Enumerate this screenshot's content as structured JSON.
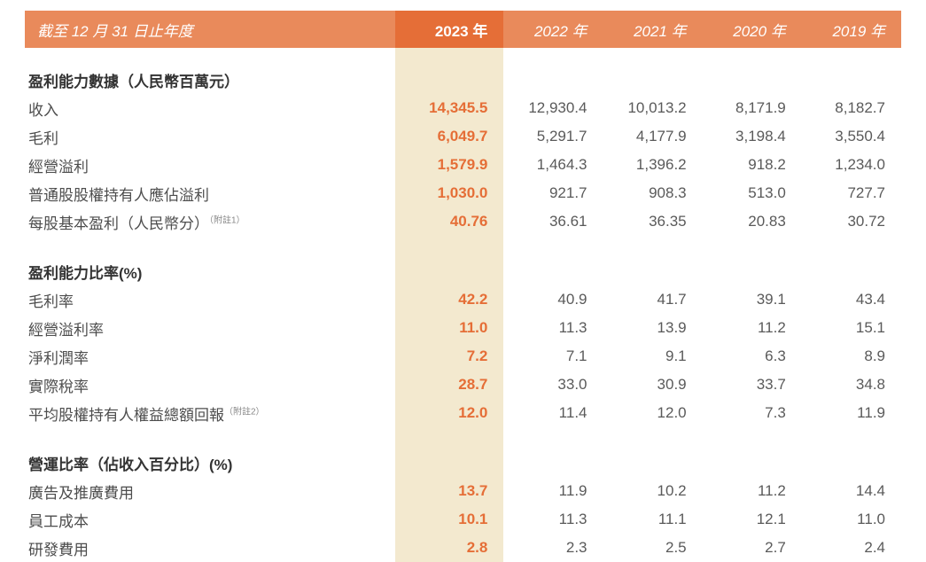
{
  "colors": {
    "header_bg": "#e98a5b",
    "header_hi_bg": "#e56e37",
    "hi_col_bg": "#f3e9cf",
    "hi_text": "#e56e37",
    "body_text": "#5a5a5a",
    "label_text": "#4d4d4d",
    "section_text": "#333333"
  },
  "header": {
    "title": "截至 12 月 31 日止年度",
    "years": [
      "2023 年",
      "2022 年",
      "2021 年",
      "2020 年",
      "2019 年"
    ]
  },
  "sections": [
    {
      "title": "盈利能力數據（人民幣百萬元）",
      "rows": [
        {
          "label": "收入",
          "v": [
            "14,345.5",
            "12,930.4",
            "10,013.2",
            "8,171.9",
            "8,182.7"
          ]
        },
        {
          "label": "毛利",
          "v": [
            "6,049.7",
            "5,291.7",
            "4,177.9",
            "3,198.4",
            "3,550.4"
          ]
        },
        {
          "label": "經營溢利",
          "v": [
            "1,579.9",
            "1,464.3",
            "1,396.2",
            "918.2",
            "1,234.0"
          ]
        },
        {
          "label": "普通股股權持有人應佔溢利",
          "v": [
            "1,030.0",
            "921.7",
            "908.3",
            "513.0",
            "727.7"
          ]
        },
        {
          "label": "每股基本盈利（人民幣分）",
          "note": "（附註1）",
          "v": [
            "40.76",
            "36.61",
            "36.35",
            "20.83",
            "30.72"
          ]
        }
      ]
    },
    {
      "title": "盈利能力比率(%)",
      "rows": [
        {
          "label": "毛利率",
          "v": [
            "42.2",
            "40.9",
            "41.7",
            "39.1",
            "43.4"
          ]
        },
        {
          "label": "經營溢利率",
          "v": [
            "11.0",
            "11.3",
            "13.9",
            "11.2",
            "15.1"
          ]
        },
        {
          "label": "淨利潤率",
          "v": [
            "7.2",
            "7.1",
            "9.1",
            "6.3",
            "8.9"
          ]
        },
        {
          "label": "實際稅率",
          "v": [
            "28.7",
            "33.0",
            "30.9",
            "33.7",
            "34.8"
          ]
        },
        {
          "label": "平均股權持有人權益總額回報",
          "note": "（附註2）",
          "v": [
            "12.0",
            "11.4",
            "12.0",
            "7.3",
            "11.9"
          ]
        }
      ]
    },
    {
      "title": "營運比率（佔收入百分比）(%)",
      "rows": [
        {
          "label": "廣告及推廣費用",
          "v": [
            "13.7",
            "11.9",
            "10.2",
            "11.2",
            "14.4"
          ]
        },
        {
          "label": "員工成本",
          "v": [
            "10.1",
            "11.3",
            "11.1",
            "12.1",
            "11.0"
          ]
        },
        {
          "label": "研發費用",
          "v": [
            "2.8",
            "2.3",
            "2.5",
            "2.7",
            "2.4"
          ]
        }
      ]
    }
  ]
}
